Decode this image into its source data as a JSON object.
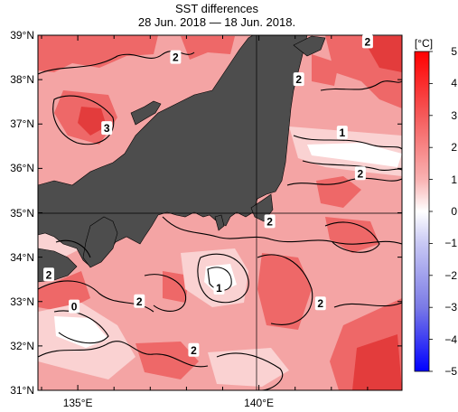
{
  "title": "SST differences",
  "subtitle": "28 Jun. 2018 — 18 Jun. 2018.",
  "lat_labels": [
    "39°N",
    "38°N",
    "37°N",
    "36°N",
    "35°N",
    "34°N",
    "33°N",
    "32°N",
    "31°N"
  ],
  "lon_labels": [
    "135°E",
    "140°E"
  ],
  "colorbar": {
    "unit": "[°C]",
    "ticks": [
      "5",
      "4",
      "3",
      "2",
      "1",
      "0",
      "−1",
      "−2",
      "−3",
      "−4",
      "−5"
    ]
  },
  "contour_labels": [
    {
      "text": "2",
      "lon": 137.7,
      "lat": 38.5
    },
    {
      "text": "2",
      "lon": 143.0,
      "lat": 38.85
    },
    {
      "text": "2",
      "lon": 141.1,
      "lat": 38.0
    },
    {
      "text": "3",
      "lon": 135.8,
      "lat": 36.9
    },
    {
      "text": "1",
      "lon": 142.3,
      "lat": 36.8
    },
    {
      "text": "2",
      "lon": 142.8,
      "lat": 35.88
    },
    {
      "text": "2",
      "lon": 140.3,
      "lat": 34.8
    },
    {
      "text": "2",
      "lon": 134.2,
      "lat": 33.6
    },
    {
      "text": "1",
      "lon": 138.9,
      "lat": 33.3
    },
    {
      "text": "2",
      "lon": 136.7,
      "lat": 33.0
    },
    {
      "text": "2",
      "lon": 141.7,
      "lat": 32.95
    },
    {
      "text": "0",
      "lon": 134.9,
      "lat": 32.88
    },
    {
      "text": "2",
      "lon": 138.2,
      "lat": 31.9
    }
  ],
  "colors": {
    "land": "#4d4d4d",
    "sea_base": "#f4a4a4",
    "warm": "#ee6868",
    "hot": "#e33c3c",
    "mild": "#fad2d2",
    "cool": "#ffffff"
  }
}
